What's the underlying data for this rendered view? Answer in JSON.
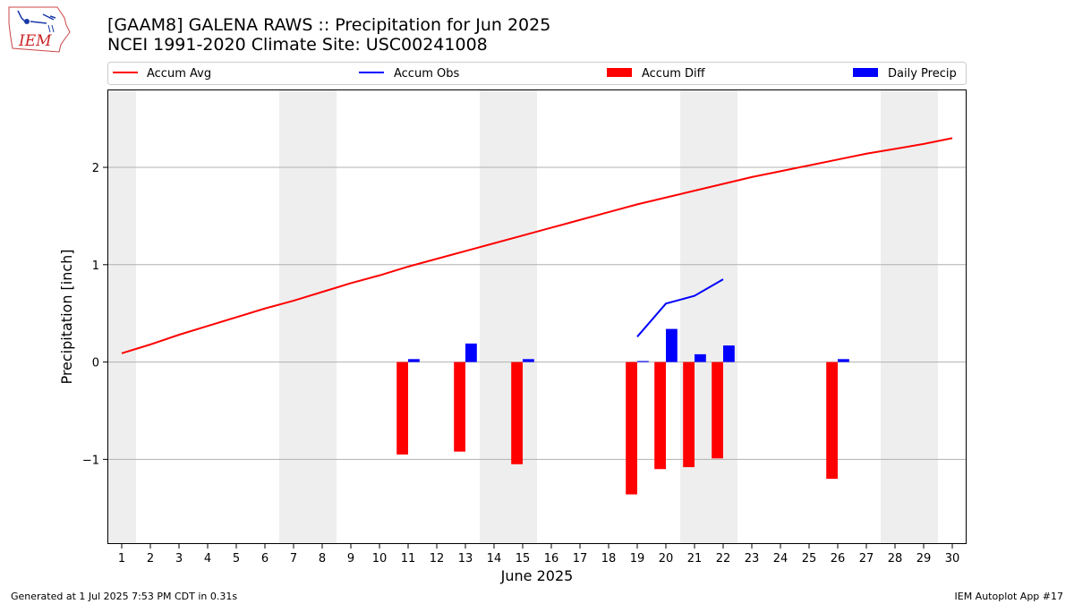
{
  "header": {
    "title_line1": "[GAAM8] GALENA RAWS :: Precipitation for Jun 2025",
    "title_line2": "NCEI 1991-2020 Climate Site: USC00241008",
    "logo_text": "IEM"
  },
  "footer": {
    "left": "Generated at 1 Jul 2025 7:53 PM CDT in 0.31s",
    "right": "IEM Autoplot App #17"
  },
  "colors": {
    "accum_avg": "#ff0000",
    "accum_obs": "#0000ff",
    "accum_diff": "#ff0000",
    "daily_precip": "#0000ff",
    "weekend_shade": "#eeeeee",
    "grid": "#b0b0b0"
  },
  "chart_data": {
    "type": "bar",
    "xlabel": "June 2025",
    "ylabel": "Precipitation [inch]",
    "xlim": [
      0.5,
      30.5
    ],
    "ylim": [
      -1.87,
      2.8
    ],
    "x_ticks": [
      1,
      2,
      3,
      4,
      5,
      6,
      7,
      8,
      9,
      10,
      11,
      12,
      13,
      14,
      15,
      16,
      17,
      18,
      19,
      20,
      21,
      22,
      23,
      24,
      25,
      26,
      27,
      28,
      29,
      30
    ],
    "y_ticks": [
      -1,
      0,
      1,
      2
    ],
    "y_tick_labels": [
      "−1",
      "0",
      "1",
      "2"
    ],
    "grid": "horizontal",
    "legend_placement": "top (above plot)",
    "shaded_weekend_days": [
      1,
      7,
      8,
      14,
      15,
      21,
      22,
      28,
      29
    ],
    "legend": [
      "Accum Avg",
      "Accum Obs",
      "Accum Diff",
      "Daily Precip"
    ],
    "accum_avg": {
      "name": "Accum Avg",
      "x": [
        1,
        2,
        3,
        4,
        5,
        6,
        7,
        8,
        9,
        10,
        11,
        12,
        13,
        14,
        15,
        16,
        17,
        18,
        19,
        20,
        21,
        22,
        23,
        24,
        25,
        26,
        27,
        28,
        29,
        30
      ],
      "values": [
        0.09,
        0.18,
        0.28,
        0.37,
        0.46,
        0.55,
        0.63,
        0.72,
        0.81,
        0.89,
        0.98,
        1.06,
        1.14,
        1.22,
        1.3,
        1.38,
        1.46,
        1.54,
        1.62,
        1.69,
        1.76,
        1.83,
        1.9,
        1.96,
        2.02,
        2.08,
        2.14,
        2.19,
        2.24,
        2.3
      ]
    },
    "accum_obs": {
      "name": "Accum Obs",
      "x": [
        19,
        20,
        21,
        22
      ],
      "values": [
        0.26,
        0.6,
        0.68,
        0.85
      ]
    },
    "accum_diff": {
      "name": "Accum Diff",
      "x": [
        11,
        13,
        15,
        19,
        20,
        21,
        22,
        26
      ],
      "values": [
        -0.95,
        -0.92,
        -1.05,
        -1.36,
        -1.1,
        -1.08,
        -0.99,
        -1.2
      ]
    },
    "daily_precip": {
      "name": "Daily Precip",
      "x": [
        11,
        13,
        15,
        19,
        20,
        21,
        22,
        26
      ],
      "values": [
        0.03,
        0.19,
        0.03,
        0.01,
        0.34,
        0.08,
        0.17,
        0.03
      ]
    }
  }
}
